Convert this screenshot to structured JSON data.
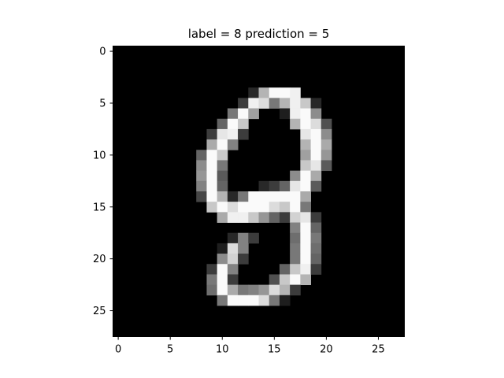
{
  "chart_data": {
    "type": "heatmap",
    "title": "label = 8 prediction = 5",
    "colormap": "gray",
    "value_range": [
      0,
      255
    ],
    "rows": 28,
    "cols": 28,
    "xlim": [
      -0.5,
      27.5
    ],
    "ylim": [
      27.5,
      -0.5
    ],
    "xticks": [
      0,
      5,
      10,
      15,
      20,
      25
    ],
    "yticks": [
      0,
      5,
      10,
      15,
      20,
      25
    ],
    "xtick_labels": [
      "0",
      "5",
      "10",
      "15",
      "20",
      "25"
    ],
    "ytick_labels": [
      "0",
      "5",
      "10",
      "15",
      "20",
      "25"
    ],
    "xlabel": "",
    "ylabel": "",
    "grid": false,
    "pixels": [
      [
        4,
        13,
        40
      ],
      [
        4,
        14,
        180
      ],
      [
        4,
        15,
        250
      ],
      [
        4,
        16,
        250
      ],
      [
        4,
        17,
        240
      ],
      [
        5,
        12,
        60
      ],
      [
        5,
        13,
        240
      ],
      [
        5,
        14,
        220
      ],
      [
        5,
        15,
        120
      ],
      [
        5,
        16,
        180
      ],
      [
        5,
        17,
        240
      ],
      [
        5,
        18,
        200
      ],
      [
        5,
        19,
        40
      ],
      [
        6,
        11,
        120
      ],
      [
        6,
        12,
        250
      ],
      [
        6,
        13,
        160
      ],
      [
        6,
        16,
        30
      ],
      [
        6,
        17,
        240
      ],
      [
        6,
        18,
        250
      ],
      [
        6,
        19,
        140
      ],
      [
        7,
        10,
        100
      ],
      [
        7,
        11,
        250
      ],
      [
        7,
        12,
        200
      ],
      [
        7,
        17,
        180
      ],
      [
        7,
        18,
        250
      ],
      [
        7,
        19,
        220
      ],
      [
        7,
        20,
        80
      ],
      [
        8,
        9,
        60
      ],
      [
        8,
        10,
        230
      ],
      [
        8,
        11,
        240
      ],
      [
        8,
        12,
        60
      ],
      [
        8,
        18,
        230
      ],
      [
        8,
        19,
        250
      ],
      [
        8,
        20,
        140
      ],
      [
        9,
        9,
        170
      ],
      [
        9,
        10,
        250
      ],
      [
        9,
        11,
        130
      ],
      [
        9,
        18,
        180
      ],
      [
        9,
        19,
        250
      ],
      [
        9,
        20,
        170
      ],
      [
        10,
        8,
        100
      ],
      [
        10,
        9,
        250
      ],
      [
        10,
        10,
        200
      ],
      [
        10,
        18,
        160
      ],
      [
        10,
        19,
        250
      ],
      [
        10,
        20,
        150
      ],
      [
        11,
        8,
        140
      ],
      [
        11,
        9,
        250
      ],
      [
        11,
        10,
        120
      ],
      [
        11,
        18,
        200
      ],
      [
        11,
        19,
        230
      ],
      [
        11,
        20,
        90
      ],
      [
        12,
        8,
        150
      ],
      [
        12,
        9,
        250
      ],
      [
        12,
        10,
        90
      ],
      [
        12,
        17,
        140
      ],
      [
        12,
        18,
        250
      ],
      [
        12,
        19,
        170
      ],
      [
        13,
        8,
        130
      ],
      [
        13,
        9,
        250
      ],
      [
        13,
        10,
        100
      ],
      [
        13,
        14,
        40
      ],
      [
        13,
        15,
        60
      ],
      [
        13,
        16,
        100
      ],
      [
        13,
        17,
        230
      ],
      [
        13,
        18,
        250
      ],
      [
        13,
        19,
        90
      ],
      [
        14,
        8,
        70
      ],
      [
        14,
        9,
        250
      ],
      [
        14,
        10,
        180
      ],
      [
        14,
        11,
        40
      ],
      [
        14,
        12,
        120
      ],
      [
        14,
        13,
        250
      ],
      [
        14,
        14,
        250
      ],
      [
        14,
        15,
        250
      ],
      [
        14,
        16,
        250
      ],
      [
        14,
        17,
        250
      ],
      [
        14,
        18,
        170
      ],
      [
        15,
        9,
        200
      ],
      [
        15,
        10,
        250
      ],
      [
        15,
        11,
        220
      ],
      [
        15,
        12,
        250
      ],
      [
        15,
        13,
        250
      ],
      [
        15,
        14,
        250
      ],
      [
        15,
        15,
        220
      ],
      [
        15,
        16,
        200
      ],
      [
        15,
        17,
        250
      ],
      [
        15,
        18,
        120
      ],
      [
        16,
        10,
        170
      ],
      [
        16,
        11,
        240
      ],
      [
        16,
        12,
        240
      ],
      [
        16,
        13,
        200
      ],
      [
        16,
        14,
        150
      ],
      [
        16,
        15,
        100
      ],
      [
        16,
        16,
        60
      ],
      [
        16,
        17,
        210
      ],
      [
        16,
        18,
        230
      ],
      [
        16,
        19,
        60
      ],
      [
        17,
        17,
        130
      ],
      [
        17,
        18,
        250
      ],
      [
        17,
        19,
        100
      ],
      [
        18,
        11,
        40
      ],
      [
        18,
        12,
        130
      ],
      [
        18,
        13,
        60
      ],
      [
        18,
        17,
        110
      ],
      [
        18,
        18,
        250
      ],
      [
        18,
        19,
        120
      ],
      [
        19,
        10,
        30
      ],
      [
        19,
        11,
        220
      ],
      [
        19,
        12,
        130
      ],
      [
        19,
        17,
        120
      ],
      [
        19,
        18,
        250
      ],
      [
        19,
        19,
        110
      ],
      [
        20,
        10,
        140
      ],
      [
        20,
        11,
        210
      ],
      [
        20,
        12,
        60
      ],
      [
        20,
        17,
        120
      ],
      [
        20,
        18,
        250
      ],
      [
        20,
        19,
        100
      ],
      [
        21,
        9,
        60
      ],
      [
        21,
        10,
        250
      ],
      [
        21,
        11,
        130
      ],
      [
        21,
        16,
        100
      ],
      [
        21,
        17,
        200
      ],
      [
        21,
        18,
        240
      ],
      [
        21,
        19,
        60
      ],
      [
        22,
        9,
        120
      ],
      [
        22,
        10,
        250
      ],
      [
        22,
        11,
        60
      ],
      [
        22,
        15,
        80
      ],
      [
        22,
        16,
        200
      ],
      [
        22,
        17,
        250
      ],
      [
        22,
        18,
        180
      ],
      [
        23,
        9,
        110
      ],
      [
        23,
        10,
        250
      ],
      [
        23,
        11,
        170
      ],
      [
        23,
        12,
        120
      ],
      [
        23,
        13,
        130
      ],
      [
        23,
        14,
        150
      ],
      [
        23,
        15,
        220
      ],
      [
        23,
        16,
        180
      ],
      [
        23,
        17,
        60
      ],
      [
        24,
        10,
        120
      ],
      [
        24,
        11,
        250
      ],
      [
        24,
        12,
        250
      ],
      [
        24,
        13,
        250
      ],
      [
        24,
        14,
        220
      ],
      [
        24,
        15,
        120
      ],
      [
        24,
        16,
        30
      ]
    ]
  }
}
